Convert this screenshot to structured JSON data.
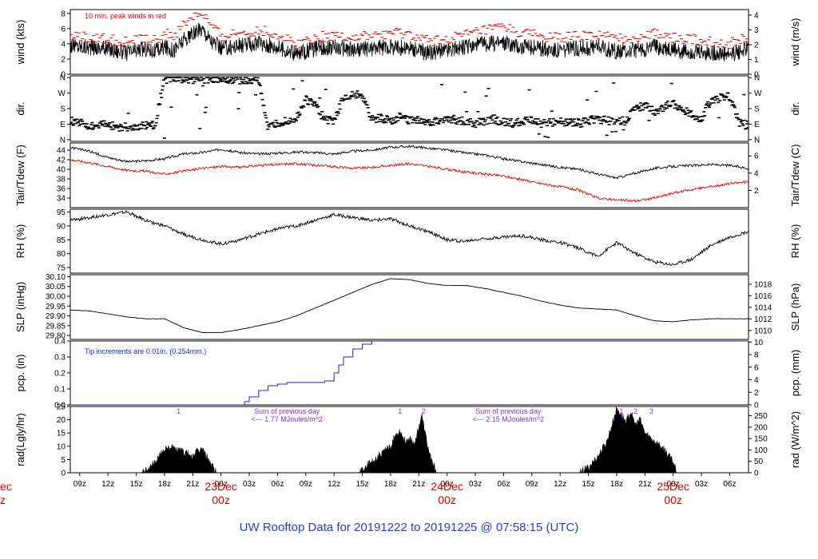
{
  "title": "UW Rooftop Data for 20191222  to  20191225 @ 07:58:15  (UTC)",
  "colors": {
    "red": "#dd0000",
    "blue": "#2222cc",
    "purple": "#8a2be2",
    "title": "#1f3fd6"
  },
  "x_axis": {
    "tick_labels": [
      "09z",
      "12z",
      "15z",
      "18z",
      "21z",
      "00z",
      "03z",
      "06z",
      "09z",
      "12z",
      "15z",
      "18z",
      "21z",
      "00z",
      "03z",
      "06z",
      "09z",
      "12z",
      "15z",
      "18z",
      "21z",
      "00z",
      "03z",
      "06z"
    ],
    "tick_hours": [
      9,
      12,
      15,
      18,
      21,
      24,
      27,
      30,
      33,
      36,
      39,
      42,
      45,
      48,
      51,
      54,
      57,
      60,
      63,
      66,
      69,
      72,
      75,
      78
    ],
    "day_labels": [
      {
        "name": "23Dec",
        "sub": "00z",
        "hour": 24
      },
      {
        "name": "24Dec",
        "sub": "00z",
        "hour": 48
      },
      {
        "name": "25Dec",
        "sub": "00z",
        "hour": 72
      }
    ],
    "left_cut_label": {
      "name": "ec",
      "sub": "z"
    },
    "range_hours": [
      8,
      80
    ]
  },
  "chart_data": [
    {
      "type": "line",
      "panel": "wind",
      "ylabel": "wind (kts)",
      "ylabel_right": "wind (m/s)",
      "ylim": [
        0,
        8.5
      ],
      "yticks": [
        0,
        2,
        4,
        6,
        8
      ],
      "yticks_right": {
        "values": [
          0,
          1,
          2,
          3,
          4
        ],
        "factor": 1.944
      },
      "annotation": "10 min. peak winds in red",
      "series": [
        {
          "color": "#000000",
          "x": [
            8,
            10,
            12,
            14,
            16,
            17,
            18,
            19,
            20,
            21,
            22,
            23,
            24,
            26,
            28,
            30,
            32,
            34,
            36,
            38,
            40,
            42,
            44,
            46,
            48,
            50,
            52,
            54,
            56,
            58,
            60,
            62,
            64,
            66,
            68,
            70,
            72,
            74,
            76,
            78,
            80
          ],
          "y": [
            3.8,
            3.6,
            3.4,
            2.8,
            3.4,
            3.0,
            3.6,
            3.2,
            4.4,
            5.2,
            6.0,
            4.4,
            3.4,
            3.8,
            4.0,
            3.6,
            2.6,
            3.4,
            3.6,
            3.2,
            3.4,
            3.6,
            3.4,
            2.8,
            3.2,
            3.6,
            4.0,
            4.2,
            3.6,
            3.4,
            3.2,
            3.4,
            3.6,
            3.0,
            3.2,
            3.6,
            3.2,
            3.0,
            2.8,
            2.6,
            3.4
          ]
        },
        {
          "color": "#dd0000",
          "x": [
            8,
            10,
            12,
            14,
            16,
            17,
            18,
            19,
            20,
            21,
            22,
            23,
            24,
            26,
            28,
            30,
            32,
            34,
            36,
            38,
            40,
            42,
            44,
            46,
            48,
            50,
            52,
            54,
            56,
            58,
            60,
            62,
            64,
            66,
            68,
            70,
            72,
            74,
            76,
            78,
            80
          ],
          "y": [
            5.2,
            4.8,
            4.6,
            4.2,
            4.6,
            4.4,
            5.4,
            5.0,
            6.4,
            7.6,
            8.0,
            6.2,
            5.0,
            5.4,
            5.8,
            5.2,
            4.0,
            4.8,
            5.2,
            4.8,
            5.0,
            5.4,
            5.2,
            4.4,
            4.6,
            5.2,
            5.8,
            6.2,
            5.4,
            5.0,
            4.8,
            5.0,
            5.2,
            4.6,
            4.8,
            5.4,
            4.8,
            4.6,
            4.2,
            4.0,
            5.0
          ]
        }
      ]
    },
    {
      "type": "scatter",
      "panel": "dir",
      "ylabel": "dir.",
      "ylabel_right": "dir.",
      "ylim": [
        -10,
        370
      ],
      "ytick_labels": [
        "N",
        "E",
        "S",
        "W",
        "N"
      ],
      "ytick_values": [
        0,
        90,
        180,
        270,
        360
      ],
      "series": [
        {
          "color": "#000000",
          "x": [
            8,
            9,
            10,
            11,
            12,
            13,
            14,
            15,
            16,
            17,
            18,
            19,
            20,
            21,
            22,
            23,
            24,
            25,
            26,
            27,
            28,
            29,
            30,
            31,
            32,
            33,
            34,
            35,
            36,
            37,
            38,
            39,
            40,
            41,
            42,
            43,
            44,
            45,
            46,
            47,
            48,
            49,
            50,
            51,
            52,
            53,
            54,
            55,
            56,
            57,
            58,
            59,
            60,
            61,
            62,
            63,
            64,
            65,
            66,
            67,
            68,
            69,
            70,
            71,
            72,
            73,
            74,
            75,
            76,
            77,
            78,
            79,
            80
          ],
          "y": [
            110,
            95,
            85,
            80,
            90,
            70,
            60,
            70,
            80,
            85,
            350,
            355,
            352,
            350,
            348,
            352,
            355,
            350,
            345,
            340,
            355,
            60,
            95,
            110,
            120,
            230,
            200,
            115,
            110,
            240,
            270,
            250,
            120,
            125,
            110,
            130,
            115,
            120,
            100,
            110,
            125,
            115,
            100,
            95,
            110,
            120,
            100,
            95,
            105,
            110,
            95,
            100,
            105,
            100,
            95,
            110,
            120,
            115,
            100,
            110,
            180,
            200,
            160,
            190,
            210,
            170,
            150,
            120,
            230,
            240,
            250,
            100,
            80
          ]
        }
      ]
    },
    {
      "type": "line",
      "panel": "temp",
      "ylabel": "Tair/Tdew (F)",
      "ylabel_right": "Tair/Tdew (C)",
      "ylim": [
        32,
        45.5
      ],
      "yticks": [
        34,
        36,
        38,
        40,
        42,
        44
      ],
      "yticks_right": {
        "values": [
          2,
          4,
          6
        ]
      },
      "series": [
        {
          "name": "Tair",
          "color": "#000000",
          "x": [
            8,
            10,
            12,
            14,
            16,
            18,
            20,
            22,
            24,
            26,
            28,
            30,
            32,
            34,
            36,
            38,
            40,
            42,
            44,
            46,
            48,
            50,
            52,
            54,
            56,
            58,
            60,
            62,
            64,
            66,
            68,
            70,
            72,
            74,
            76,
            78,
            80
          ],
          "y": [
            44.5,
            43.8,
            42.5,
            41.6,
            41.8,
            42.2,
            43.2,
            43.5,
            44.2,
            43.5,
            43.2,
            43.4,
            43.6,
            43.5,
            43.2,
            43.8,
            44.0,
            44.6,
            44.8,
            44.4,
            44.0,
            43.4,
            43.0,
            42.2,
            41.6,
            41.0,
            40.4,
            40.0,
            39.0,
            38.2,
            39.2,
            40.2,
            40.6,
            40.8,
            41.0,
            40.8,
            40.2
          ]
        },
        {
          "name": "Tdew",
          "color": "#dd0000",
          "x": [
            8,
            10,
            12,
            14,
            16,
            18,
            20,
            22,
            24,
            26,
            28,
            30,
            32,
            34,
            36,
            38,
            40,
            42,
            44,
            46,
            48,
            50,
            52,
            54,
            56,
            58,
            60,
            62,
            64,
            66,
            68,
            70,
            72,
            74,
            76,
            78,
            80
          ],
          "y": [
            42.0,
            41.4,
            40.6,
            39.8,
            39.6,
            39.0,
            39.6,
            40.2,
            40.6,
            40.4,
            40.8,
            41.0,
            41.2,
            40.8,
            40.6,
            40.2,
            40.4,
            40.8,
            41.2,
            40.6,
            40.0,
            39.4,
            39.0,
            38.6,
            37.8,
            37.0,
            36.4,
            35.6,
            34.0,
            33.6,
            33.4,
            34.0,
            35.0,
            35.8,
            36.4,
            37.0,
            37.4
          ]
        }
      ]
    },
    {
      "type": "line",
      "panel": "rh",
      "ylabel": "RH (%)",
      "ylabel_right": "RH (%)",
      "ylim": [
        73,
        96
      ],
      "yticks": [
        75,
        80,
        85,
        90,
        95
      ],
      "series": [
        {
          "color": "#000000",
          "x": [
            8,
            10,
            12,
            14,
            16,
            18,
            20,
            22,
            24,
            26,
            28,
            30,
            32,
            34,
            36,
            38,
            40,
            42,
            44,
            46,
            48,
            50,
            52,
            54,
            56,
            58,
            60,
            62,
            64,
            66,
            68,
            70,
            72,
            74,
            76,
            78,
            80
          ],
          "y": [
            92,
            93,
            94,
            95,
            92,
            90,
            87,
            85,
            83.5,
            85,
            87,
            89,
            90,
            92,
            94,
            93,
            92,
            92.5,
            90,
            88,
            85,
            84.5,
            85.5,
            86,
            86.5,
            85,
            84,
            82,
            79,
            84,
            80,
            77,
            76,
            78,
            83,
            86,
            88
          ]
        }
      ]
    },
    {
      "type": "line",
      "panel": "slp",
      "ylabel": "SLP (inHg)",
      "ylabel_right": "SLP (hPa)",
      "ylim": [
        29.78,
        30.11
      ],
      "yticks": [
        29.8,
        29.85,
        29.9,
        29.95,
        30.0,
        30.05,
        30.1
      ],
      "ytick_labels": [
        "29.80",
        "29.85",
        "29.90",
        "29.95",
        "30.00",
        "30.05",
        "30.10"
      ],
      "yticks_right": {
        "values": [
          1010,
          1012,
          1014,
          1016,
          1018
        ]
      },
      "series": [
        {
          "color": "#000000",
          "x": [
            8,
            10,
            12,
            14,
            16,
            18,
            20,
            22,
            24,
            26,
            28,
            30,
            32,
            34,
            36,
            38,
            40,
            42,
            44,
            46,
            48,
            50,
            52,
            54,
            56,
            58,
            60,
            62,
            64,
            66,
            68,
            70,
            72,
            74,
            76,
            78,
            80
          ],
          "y": [
            29.93,
            29.925,
            29.91,
            29.895,
            29.885,
            29.885,
            29.84,
            29.815,
            29.815,
            29.83,
            29.85,
            29.87,
            29.9,
            29.94,
            29.98,
            30.02,
            30.06,
            30.09,
            30.085,
            30.065,
            30.055,
            30.055,
            30.04,
            30.02,
            30.0,
            29.975,
            29.955,
            29.94,
            29.935,
            29.93,
            29.9,
            29.875,
            29.87,
            29.88,
            29.885,
            29.885,
            29.885
          ]
        }
      ]
    },
    {
      "type": "line",
      "panel": "pcp",
      "ylabel": "pcp. (in)",
      "ylabel_right": "pcp. (mm)",
      "ylim": [
        0,
        0.4
      ],
      "yticks": [
        0,
        0.1,
        0.2,
        0.3,
        0.4
      ],
      "ytick_labels": [
        "0.0",
        "0.1",
        "0.2",
        "0.3",
        "0.4"
      ],
      "yticks_right": {
        "values": [
          0,
          2,
          4,
          6,
          8,
          10
        ],
        "factor": 0.03937
      },
      "annotation": "Tip increments are 0.01in. (0.254mm.)",
      "series": [
        {
          "color": "#2222cc",
          "x": [
            8,
            26,
            26.5,
            27,
            28,
            29,
            30,
            31,
            32,
            33,
            34,
            35,
            36,
            36.5,
            37,
            38,
            39,
            40,
            41,
            42,
            48,
            80
          ],
          "y": [
            0,
            0,
            0.02,
            0.05,
            0.09,
            0.12,
            0.13,
            0.14,
            0.14,
            0.14,
            0.14,
            0.15,
            0.2,
            0.25,
            0.3,
            0.35,
            0.38,
            0.4,
            0.4,
            0.4,
            0.4,
            0.4
          ]
        }
      ]
    },
    {
      "type": "area",
      "panel": "rad",
      "ylabel": "rad(Lgly/hr)",
      "ylabel_right": "rad (W/m^2)",
      "ylim": [
        0,
        25
      ],
      "yticks": [
        0,
        5,
        10,
        15,
        20,
        25
      ],
      "yticks_right": {
        "values": [
          0,
          50,
          100,
          150,
          200,
          250
        ],
        "factor": 0.086
      },
      "annotations": [
        {
          "text": "1",
          "hour": 19.5
        },
        {
          "text": "Sum of previous day",
          "hour": 31
        },
        {
          "text": "<--- 1.77 MJoules/m^2",
          "hour": 31,
          "line": 2
        },
        {
          "text": "1",
          "hour": 43
        },
        {
          "text": "2",
          "hour": 45.5
        },
        {
          "text": "Sum of previous day",
          "hour": 54.5
        },
        {
          "text": "<--- 2.15 MJoules/m^2",
          "hour": 54.5,
          "line": 2
        },
        {
          "text": "1",
          "hour": 66.5
        },
        {
          "text": "2",
          "hour": 68
        },
        {
          "text": "3",
          "hour": 69.7
        }
      ],
      "series": [
        {
          "color": "#000000",
          "x": [
            15.5,
            16,
            17,
            18,
            18.5,
            19,
            20,
            21,
            21.5,
            22,
            22.5,
            23,
            23.5,
            38.5,
            39,
            40,
            41,
            42,
            42.5,
            43,
            43.5,
            44,
            44.5,
            45,
            45.3,
            45.6,
            46,
            46.5,
            47,
            62,
            63,
            64,
            65,
            65.5,
            66,
            66.5,
            67,
            67.5,
            68,
            68.5,
            69,
            70,
            71,
            72,
            72.5
          ],
          "y": [
            0,
            1,
            4,
            9,
            10,
            9,
            8,
            6,
            8,
            9,
            6,
            3,
            0,
            0,
            1,
            4,
            7,
            10,
            14,
            16,
            12,
            13,
            11,
            17,
            22,
            16,
            9,
            3,
            0,
            0,
            2,
            6,
            12,
            18,
            24,
            22,
            19,
            23,
            18,
            20,
            15,
            12,
            9,
            4,
            0
          ]
        }
      ]
    }
  ]
}
